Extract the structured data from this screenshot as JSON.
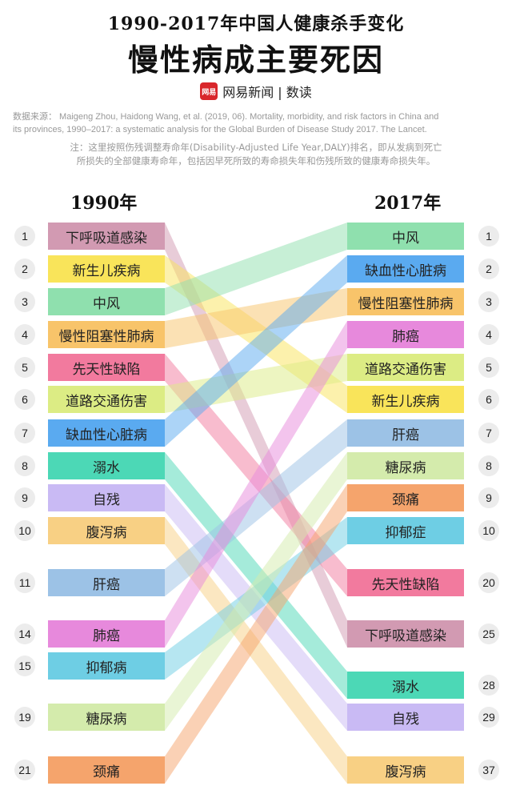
{
  "header": {
    "supertitle": "1990-2017年中国人健康杀手变化",
    "title": "慢性病成主要死因",
    "logo_text": "网易",
    "brand": "网易新闻 | 数读"
  },
  "source": {
    "line1": "数据来源： Maigeng Zhou, Haidong Wang, et al. (2019, 06). Mortality, morbidity, and risk factors in China and",
    "line2": "its provinces, 1990–2017: a systematic analysis for the Global Burden of Disease Study 2017. The Lancet.",
    "note1": "注：这里按照伤残调整寿命年(Disability-Adjusted Life Year,DALY)排名，即从发病到死亡",
    "note2": "所损失的全部健康寿命年，包括因早死所致的寿命损失年和伤残所致的健康寿命损失年。"
  },
  "chart_data": {
    "type": "slope",
    "title": "慢性病成主要死因",
    "left_label": "1990年",
    "right_label": "2017年",
    "series": [
      {
        "name": "下呼吸道感染",
        "rank_1990": 1,
        "rank_2017": 25,
        "color": "#d29ab2"
      },
      {
        "name": "新生儿疾病",
        "rank_1990": 2,
        "rank_2017": 6,
        "color": "#f9e45a"
      },
      {
        "name": "中风",
        "rank_1990": 3,
        "rank_2017": 1,
        "color": "#8fe0ae"
      },
      {
        "name": "慢性阻塞性肺病",
        "rank_1990": 4,
        "rank_2017": 3,
        "color": "#f8c46a"
      },
      {
        "name": "先天性缺陷",
        "rank_1990": 5,
        "rank_2017": 20,
        "color": "#f27a9e"
      },
      {
        "name": "道路交通伤害",
        "rank_1990": 6,
        "rank_2017": 5,
        "color": "#dcec84"
      },
      {
        "name": "缺血性心脏病",
        "rank_1990": 7,
        "rank_2017": 2,
        "color": "#5aaaf0"
      },
      {
        "name": "溺水",
        "rank_1990": 8,
        "rank_2017": 28,
        "color": "#4cd8b6"
      },
      {
        "name": "自残",
        "rank_1990": 9,
        "rank_2017": 29,
        "color": "#c9baf4"
      },
      {
        "name": "腹泻病",
        "rank_1990": 10,
        "rank_2017": 37,
        "color": "#f8d084"
      },
      {
        "name": "肝癌",
        "rank_1990": 11,
        "rank_2017": 7,
        "color": "#9cc2e6"
      },
      {
        "name": "肺癌",
        "rank_1990": 14,
        "rank_2017": 4,
        "color": "#e789dc"
      },
      {
        "name": "抑郁症",
        "label_1990": "抑郁病",
        "rank_1990": 15,
        "rank_2017": 10,
        "color": "#6ecee4"
      },
      {
        "name": "糖尿病",
        "rank_1990": 19,
        "rank_2017": 8,
        "color": "#d4ebac"
      },
      {
        "name": "颈痛",
        "rank_1990": 21,
        "rank_2017": 9,
        "color": "#f5a46c"
      }
    ]
  }
}
